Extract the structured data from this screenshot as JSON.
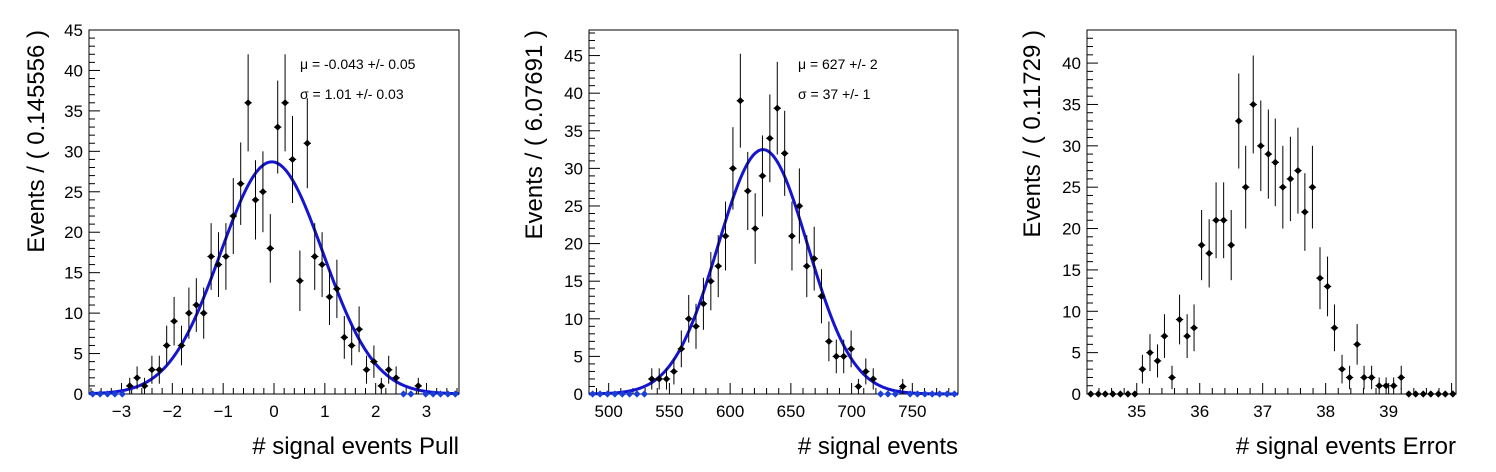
{
  "chart_data": [
    {
      "type": "scatter",
      "xlabel": "# signal events Pull",
      "ylabel": "Events / ( 0.145556 )",
      "xlim": [
        -3.639,
        3.639
      ],
      "ylim": [
        0,
        45
      ],
      "xticks_major": [
        -3,
        -2,
        -1,
        0,
        1,
        2,
        3
      ],
      "yticks_major": [
        0,
        5,
        10,
        15,
        20,
        25,
        30,
        35,
        40,
        45
      ],
      "stats": [
        "μ = -0.043 +/- 0.05",
        "σ =  1.01 +/- 0.03"
      ],
      "fit": {
        "type": "gaussian",
        "mu": -0.043,
        "sigma": 1.01,
        "amplitude": 28.7,
        "color": "#1515d0"
      },
      "series": [
        {
          "x": [
            -3.566,
            -3.421,
            -3.275,
            -3.13,
            -2.984,
            -2.838,
            -2.693,
            -2.547,
            -2.402,
            -2.256,
            -2.111,
            -1.965,
            -1.82,
            -1.674,
            -1.528,
            -1.383,
            -1.237,
            -1.092,
            -0.946,
            -0.801,
            -0.655,
            -0.509,
            -0.364,
            -0.218,
            -0.073,
            0.073,
            0.218,
            0.364,
            0.509,
            0.655,
            0.801,
            0.946,
            1.092,
            1.237,
            1.383,
            1.528,
            1.674,
            1.82,
            1.965,
            2.111,
            2.256,
            2.402,
            2.547,
            2.693,
            2.838,
            2.984,
            3.13,
            3.275,
            3.421,
            3.566
          ],
          "y": [
            0,
            0,
            0,
            0,
            0,
            1,
            2,
            1,
            3,
            3,
            6,
            9,
            6,
            10,
            11,
            10,
            17,
            16,
            17,
            22,
            26,
            36,
            24,
            25,
            18,
            33,
            36,
            29,
            14,
            31,
            17,
            16,
            12,
            13,
            7,
            6,
            8,
            3,
            4,
            1,
            3,
            2,
            0,
            0,
            1,
            0,
            0,
            0,
            0,
            0
          ]
        }
      ]
    },
    {
      "type": "scatter",
      "xlabel": "# signal events",
      "ylabel": "Events / ( 6.07691 )",
      "xlim": [
        483.8,
        787.6
      ],
      "ylim": [
        0,
        48.4
      ],
      "xticks_major": [
        500,
        550,
        600,
        650,
        700,
        750
      ],
      "yticks_major": [
        0,
        5,
        10,
        15,
        20,
        25,
        30,
        35,
        40,
        45
      ],
      "stats": [
        "μ =  627 +/- 2",
        "σ =  37 +/- 1"
      ],
      "fit": {
        "type": "gaussian",
        "mu": 627,
        "sigma": 37,
        "amplitude": 32.5,
        "color": "#1515d0"
      },
      "series": [
        {
          "x": [
            486.8,
            492.9,
            499.0,
            505.1,
            511.2,
            517.2,
            523.3,
            529.4,
            535.5,
            541.6,
            547.6,
            553.7,
            559.8,
            565.9,
            571.9,
            578.0,
            584.1,
            590.2,
            596.2,
            602.3,
            608.4,
            614.5,
            620.6,
            626.6,
            632.7,
            638.8,
            644.9,
            650.9,
            657.0,
            663.1,
            669.2,
            675.2,
            681.3,
            687.4,
            693.5,
            699.6,
            705.6,
            711.7,
            717.8,
            723.9,
            729.9,
            736.0,
            742.1,
            748.2,
            754.2,
            760.3,
            766.4,
            772.5,
            778.6,
            784.6
          ],
          "y": [
            0,
            0,
            0,
            0,
            0,
            0,
            0,
            0,
            2,
            2,
            2,
            3,
            6,
            10,
            9,
            12,
            15,
            17,
            21,
            30,
            39,
            27,
            22,
            29,
            34,
            38,
            32,
            21,
            25,
            17,
            18,
            13,
            7,
            5,
            5,
            6,
            1,
            3,
            2,
            0,
            0,
            0,
            1,
            0,
            0,
            0,
            0,
            0,
            0,
            0
          ]
        }
      ]
    },
    {
      "type": "scatter",
      "xlabel": "# signal events Error",
      "ylabel": "Events / ( 0.11729 )",
      "xlim": [
        34.21,
        40.07
      ],
      "ylim": [
        0,
        44
      ],
      "xticks_major": [
        35,
        36,
        37,
        38,
        39
      ],
      "yticks_major": [
        0,
        5,
        10,
        15,
        20,
        25,
        30,
        35,
        40
      ],
      "stats": [],
      "series": [
        {
          "x": [
            34.27,
            34.39,
            34.5,
            34.62,
            34.74,
            34.86,
            34.97,
            35.09,
            35.21,
            35.33,
            35.44,
            35.56,
            35.68,
            35.8,
            35.91,
            36.03,
            36.15,
            36.26,
            36.38,
            36.5,
            36.62,
            36.73,
            36.85,
            36.97,
            37.09,
            37.2,
            37.32,
            37.44,
            37.56,
            37.67,
            37.79,
            37.91,
            38.03,
            38.14,
            38.26,
            38.38,
            38.5,
            38.61,
            38.73,
            38.85,
            38.96,
            39.08,
            39.2,
            39.32,
            39.43,
            39.55,
            39.67,
            39.79,
            39.9,
            40.02
          ],
          "y": [
            0,
            0,
            0,
            0,
            0,
            0,
            0,
            3,
            5,
            4,
            7,
            2,
            9,
            7,
            8,
            18,
            17,
            21,
            21,
            18,
            33,
            25,
            35,
            30,
            29,
            28,
            25,
            26,
            27,
            22,
            25,
            14,
            13,
            8,
            3,
            2,
            6,
            2,
            2,
            1,
            1,
            1,
            2,
            0,
            0,
            0,
            0,
            0,
            0,
            0
          ]
        }
      ]
    }
  ]
}
